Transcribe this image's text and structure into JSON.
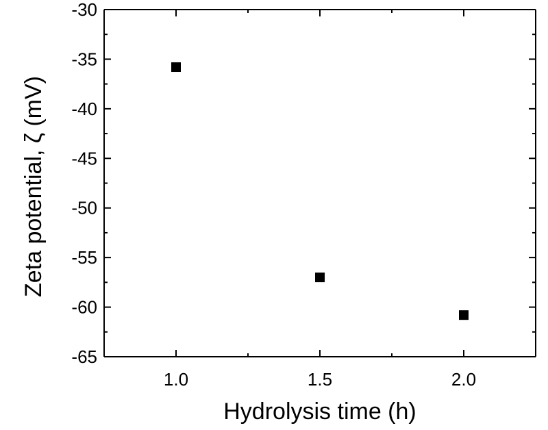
{
  "chart_data": {
    "type": "scatter",
    "title": "",
    "xlabel": "Hydrolysis time (h)",
    "ylabel": "Zeta potential, ζ (mV)",
    "xlim": [
      0.75,
      2.25
    ],
    "ylim": [
      -65,
      -30
    ],
    "xticks": [
      1.0,
      1.5,
      2.0
    ],
    "xtick_labels": [
      "1.0",
      "1.5",
      "2.0"
    ],
    "yticks": [
      -30,
      -35,
      -40,
      -45,
      -50,
      -55,
      -60,
      -65
    ],
    "ytick_labels": [
      "-30",
      "-35",
      "-40",
      "-45",
      "-50",
      "-55",
      "-60",
      "-65"
    ],
    "grid": false,
    "legend": "none",
    "marker": "square",
    "marker_color": "#000000",
    "points": [
      {
        "x": 1.0,
        "y": -35.8
      },
      {
        "x": 1.5,
        "y": -57.0
      },
      {
        "x": 2.0,
        "y": -60.8
      }
    ]
  }
}
